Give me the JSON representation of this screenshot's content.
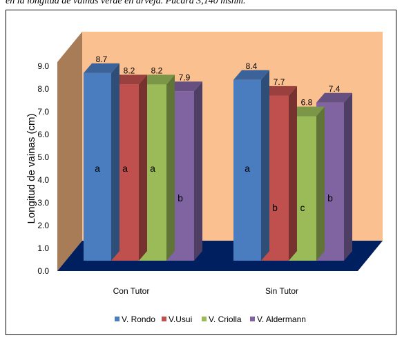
{
  "caption": "en la longitud de vainas verde en arveja. Pucará 3,140 msnm.",
  "chart_data": {
    "type": "bar",
    "categories": [
      "Con Tutor",
      "Sin Tutor"
    ],
    "ylabel": "Longitud de vainas (cm)",
    "ylim": [
      0,
      9
    ],
    "yticks": [
      "0.0",
      "1.0",
      "2.0",
      "3.0",
      "4.0",
      "5.0",
      "6.0",
      "7.0",
      "8.0",
      "9.0"
    ],
    "legend_position": "bottom",
    "series": [
      {
        "name": "V. Rondo",
        "color": "#4a7cc0",
        "values": [
          8.7,
          8.4
        ],
        "labels": [
          "8.7",
          "8.4"
        ],
        "letters": [
          "a",
          "a"
        ]
      },
      {
        "name": "V.Usui",
        "color": "#c0504d",
        "values": [
          8.2,
          7.7
        ],
        "labels": [
          "8.2",
          "7.7"
        ],
        "letters": [
          "a",
          "b"
        ]
      },
      {
        "name": "V. Criolla",
        "color": "#9bbb59",
        "values": [
          8.2,
          6.8
        ],
        "labels": [
          "8.2",
          "6.8"
        ],
        "letters": [
          "a",
          "c"
        ]
      },
      {
        "name": "V. Aldermann",
        "color": "#8064a2",
        "values": [
          7.9,
          7.4
        ],
        "labels": [
          "7.9",
          "7.4"
        ],
        "letters": [
          "b",
          "b"
        ]
      }
    ],
    "colors": {
      "back_wall": "#fac08f",
      "side_wall": "#a87c56",
      "floor": "#001f5f"
    }
  }
}
